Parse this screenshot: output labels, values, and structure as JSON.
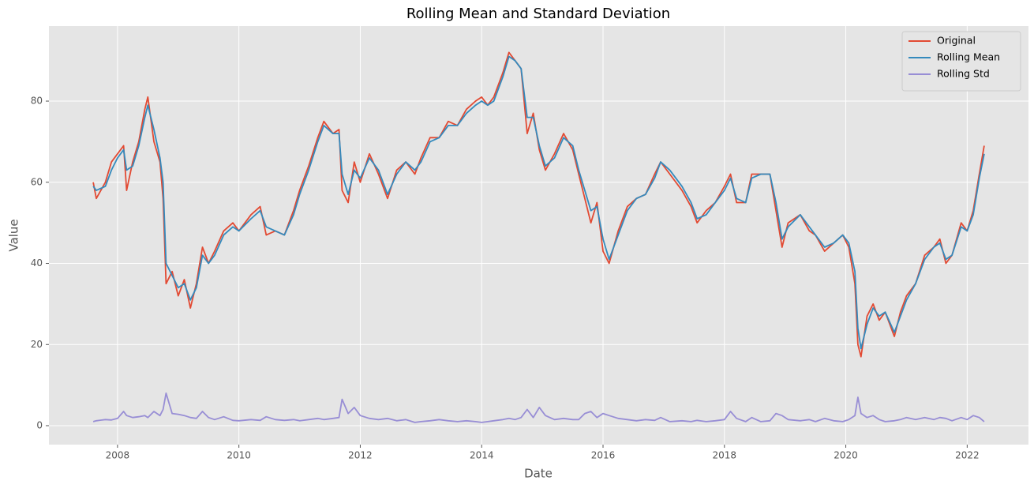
{
  "chart_data": {
    "type": "line",
    "title": "Rolling Mean and Standard Deviation",
    "x_label": "Date",
    "y_label": "Value",
    "x": [
      2007.6,
      2007.65,
      2007.8,
      2007.9,
      2008.0,
      2008.1,
      2008.15,
      2008.25,
      2008.35,
      2008.45,
      2008.5,
      2008.6,
      2008.7,
      2008.75,
      2008.8,
      2008.9,
      2009.0,
      2009.1,
      2009.2,
      2009.3,
      2009.4,
      2009.5,
      2009.6,
      2009.75,
      2009.9,
      2010.0,
      2010.2,
      2010.35,
      2010.45,
      2010.6,
      2010.75,
      2010.9,
      2011.0,
      2011.15,
      2011.3,
      2011.4,
      2011.55,
      2011.65,
      2011.7,
      2011.8,
      2011.9,
      2012.0,
      2012.15,
      2012.3,
      2012.45,
      2012.6,
      2012.75,
      2012.9,
      2013.0,
      2013.15,
      2013.3,
      2013.45,
      2013.6,
      2013.75,
      2013.9,
      2014.0,
      2014.1,
      2014.2,
      2014.35,
      2014.45,
      2014.55,
      2014.65,
      2014.75,
      2014.85,
      2014.95,
      2015.05,
      2015.2,
      2015.35,
      2015.5,
      2015.6,
      2015.7,
      2015.8,
      2015.9,
      2016.0,
      2016.1,
      2016.25,
      2016.4,
      2016.55,
      2016.7,
      2016.85,
      2016.95,
      2017.1,
      2017.3,
      2017.45,
      2017.55,
      2017.7,
      2017.85,
      2018.0,
      2018.1,
      2018.2,
      2018.35,
      2018.45,
      2018.6,
      2018.75,
      2018.85,
      2018.95,
      2019.05,
      2019.25,
      2019.4,
      2019.5,
      2019.65,
      2019.8,
      2019.95,
      2020.05,
      2020.15,
      2020.2,
      2020.25,
      2020.35,
      2020.45,
      2020.55,
      2020.65,
      2020.8,
      2020.9,
      2021.0,
      2021.15,
      2021.3,
      2021.45,
      2021.55,
      2021.65,
      2021.75,
      2021.9,
      2022.0,
      2022.1,
      2022.2,
      2022.28
    ],
    "series": [
      {
        "name": "Original",
        "color": "#E24A33",
        "values": [
          60,
          56,
          60,
          65,
          67,
          69,
          58,
          65,
          70,
          78,
          81,
          70,
          65,
          56,
          35,
          38,
          32,
          36,
          29,
          35,
          44,
          40,
          43,
          48,
          50,
          48,
          52,
          54,
          47,
          48,
          47,
          53,
          58,
          64,
          71,
          75,
          72,
          73,
          58,
          55,
          65,
          60,
          67,
          62,
          56,
          63,
          65,
          62,
          66,
          71,
          71,
          75,
          74,
          78,
          80,
          81,
          79,
          81,
          87,
          92,
          90,
          88,
          72,
          77,
          68,
          63,
          67,
          72,
          68,
          62,
          56,
          50,
          55,
          43,
          40,
          48,
          54,
          56,
          57,
          62,
          65,
          62,
          58,
          54,
          50,
          53,
          55,
          59,
          62,
          55,
          55,
          62,
          62,
          62,
          53,
          44,
          50,
          52,
          48,
          47,
          43,
          45,
          47,
          44,
          35,
          20,
          17,
          27,
          30,
          26,
          28,
          22,
          28,
          32,
          35,
          42,
          44,
          46,
          40,
          42,
          50,
          48,
          53,
          62,
          69
        ]
      },
      {
        "name": "Rolling Mean",
        "color": "#348ABD",
        "values": [
          59,
          58,
          59,
          63,
          66,
          68,
          63,
          64,
          69,
          76,
          79,
          73,
          66,
          60,
          40,
          37,
          34,
          35,
          31,
          34,
          42,
          40,
          42,
          47,
          49,
          48,
          51,
          53,
          49,
          48,
          47,
          52,
          57,
          63,
          70,
          74,
          72,
          72,
          62,
          57,
          63,
          61,
          66,
          63,
          57,
          62,
          65,
          63,
          65,
          70,
          71,
          74,
          74,
          77,
          79,
          80,
          79,
          80,
          86,
          91,
          90,
          88,
          76,
          76,
          69,
          64,
          66,
          71,
          69,
          63,
          58,
          53,
          54,
          46,
          41,
          47,
          53,
          56,
          57,
          61,
          65,
          63,
          59,
          55,
          51,
          52,
          55,
          58,
          61,
          56,
          55,
          61,
          62,
          62,
          55,
          46,
          49,
          52,
          49,
          47,
          44,
          45,
          47,
          45,
          38,
          24,
          19,
          25,
          29,
          27,
          28,
          23,
          27,
          31,
          35,
          41,
          44,
          45,
          41,
          42,
          49,
          48,
          52,
          61,
          67
        ]
      },
      {
        "name": "Rolling Std",
        "color": "#988ED5",
        "values": [
          1,
          1.2,
          1.5,
          1.4,
          1.8,
          3.5,
          2.5,
          2,
          2.2,
          2.5,
          2,
          3.5,
          2.5,
          4,
          8,
          3,
          2.8,
          2.5,
          2,
          1.8,
          3.5,
          2,
          1.5,
          2.2,
          1.3,
          1.2,
          1.5,
          1.3,
          2.2,
          1.5,
          1.3,
          1.5,
          1.2,
          1.5,
          1.8,
          1.5,
          1.8,
          2,
          6.5,
          3,
          4.5,
          2.5,
          1.8,
          1.5,
          1.8,
          1.2,
          1.5,
          0.8,
          1,
          1.2,
          1.5,
          1.2,
          1,
          1.2,
          1,
          0.8,
          1,
          1.2,
          1.5,
          1.8,
          1.5,
          2,
          4,
          2,
          4.5,
          2.5,
          1.5,
          1.8,
          1.5,
          1.5,
          3,
          3.5,
          2,
          3,
          2.5,
          1.8,
          1.5,
          1.2,
          1.5,
          1.3,
          2,
          1,
          1.2,
          1,
          1.3,
          1,
          1.2,
          1.5,
          3.5,
          1.8,
          1,
          2,
          1,
          1.2,
          3,
          2.5,
          1.5,
          1.2,
          1.5,
          1,
          1.8,
          1.2,
          1,
          1.5,
          2.5,
          7,
          3,
          2,
          2.5,
          1.5,
          1,
          1.2,
          1.5,
          2,
          1.5,
          2,
          1.5,
          2,
          1.8,
          1.2,
          2,
          1.5,
          2.5,
          2,
          1
        ]
      }
    ],
    "xlim": [
      2006.87,
      2023.01
    ],
    "xticks": [
      2008,
      2010,
      2012,
      2014,
      2016,
      2018,
      2020,
      2022
    ],
    "ylim": [
      -4.67,
      98.5
    ],
    "yticks": [
      0,
      20,
      40,
      60,
      80
    ],
    "grid": true,
    "legend": "upper right"
  }
}
